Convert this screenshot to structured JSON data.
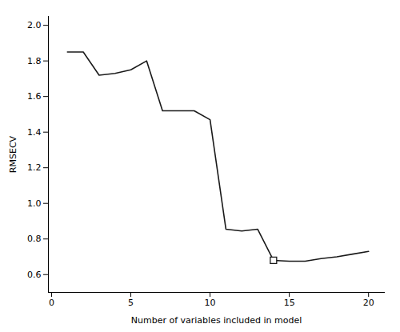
{
  "chart_data": {
    "type": "line",
    "x_label": "Number of variables included in model",
    "y_label": "RMSECV",
    "x": [
      1,
      2,
      3,
      4,
      5,
      6,
      7,
      8,
      9,
      10,
      11,
      12,
      13,
      14,
      15,
      16,
      17,
      18,
      19,
      20
    ],
    "series": [
      {
        "type": "line",
        "color": "#1a1a1a",
        "values": [
          1.85,
          1.85,
          1.72,
          1.73,
          1.75,
          1.8,
          1.52,
          1.52,
          1.52,
          1.47,
          0.855,
          0.845,
          0.855,
          0.68,
          0.675,
          0.675,
          0.69,
          0.7,
          0.715,
          0.73
        ]
      },
      {
        "type": "scatter",
        "marker": "square",
        "color": "#1a1a1a",
        "values": [
          null,
          null,
          null,
          null,
          null,
          null,
          null,
          null,
          null,
          null,
          null,
          null,
          null,
          0.68,
          null,
          null,
          null,
          null,
          null,
          null
        ]
      }
    ],
    "xlim": [
      -0.2,
      21
    ],
    "ylim": [
      0.5,
      2.05
    ],
    "xticks": [
      0,
      5,
      10,
      15,
      20
    ],
    "yticks": [
      0.6,
      0.8,
      {
        "value": 1,
        "label": "1.0"
      },
      1.2,
      1.4,
      1.6,
      1.8,
      {
        "value": 2,
        "label": "2.0"
      }
    ],
    "grid": false
  }
}
